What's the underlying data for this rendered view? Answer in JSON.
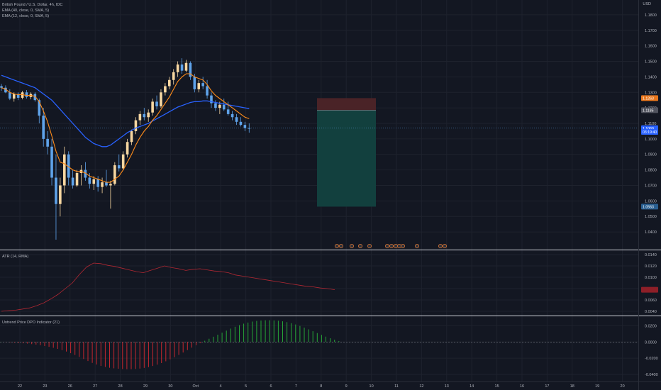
{
  "header": {
    "symbol_line": "British Pound / U.S. Dollar, 4h, IDC",
    "ema_long": "EMA (40, close, 0, SMA, 5)",
    "ema_short": "EMA (12, close, 0, SMA, 5)",
    "currency": "USD"
  },
  "atr_panel": {
    "label": "ATR (14, RMA)"
  },
  "dpo_panel": {
    "label": "Untrend Price DPO Indicator (21)"
  },
  "colors": {
    "background": "#131722",
    "grid": "#1e222d",
    "bull_candle": "#f7d7a1",
    "bear_candle": "#5fa3ea",
    "ema_long": "#2962ff",
    "ema_short": "#ff8c1a",
    "atr_line": "#b22833",
    "dpo_positive": "#26a637",
    "dpo_negative": "#c4272f",
    "stop_zone": "#4a2327",
    "target_zone": "#12403e",
    "axis_text": "#b2b5be"
  },
  "chart_data": [
    {
      "type": "candlestick",
      "name": "price",
      "ylim": [
        1.035,
        1.185
      ],
      "price_ticks": [
        "1.1800",
        "1.1700",
        "1.1600",
        "1.1500",
        "1.1400",
        "1.1300",
        "1.1200",
        "1.1100",
        "1.1000",
        "1.0900",
        "1.0800",
        "1.0700",
        "1.0600",
        "1.0500",
        "1.0400"
      ],
      "price_tags": [
        {
          "label": "1.1263",
          "value": 1.1263,
          "color": "#e8771e"
        },
        {
          "label": "1.1185",
          "value": 1.1185,
          "color": "#50535e"
        },
        {
          "label": "1.1069",
          "value": 1.1069,
          "color": "#2962ff"
        },
        {
          "label": "03:19:40",
          "value": 1.1045,
          "color": "#2962ff"
        },
        {
          "label": "1.0563",
          "value": 1.0563,
          "color": "#2a5f91"
        }
      ],
      "x_axis_labels": [
        "22",
        "23",
        "26",
        "27",
        "28",
        "29",
        "30",
        "Oct",
        "4",
        "5",
        "6",
        "7",
        "8",
        "9",
        "10",
        "11",
        "12",
        "13",
        "14",
        "15",
        "16",
        "17",
        "18",
        "19",
        "20",
        "21",
        "22",
        "23",
        "24",
        "25",
        "26"
      ],
      "position_tool": {
        "entry": 1.1185,
        "stop": 1.1263,
        "target": 1.0563
      },
      "candles": [
        [
          1.134,
          1.1355,
          1.131,
          1.133
        ],
        [
          1.133,
          1.1345,
          1.1295,
          1.13
        ],
        [
          1.13,
          1.132,
          1.125,
          1.126
        ],
        [
          1.126,
          1.13,
          1.124,
          1.129
        ],
        [
          1.129,
          1.13,
          1.125,
          1.1265
        ],
        [
          1.1265,
          1.131,
          1.1255,
          1.13
        ],
        [
          1.13,
          1.1315,
          1.126,
          1.127
        ],
        [
          1.127,
          1.13,
          1.1255,
          1.129
        ],
        [
          1.129,
          1.13,
          1.124,
          1.125
        ],
        [
          1.125,
          1.126,
          1.11,
          1.115
        ],
        [
          1.115,
          1.12,
          1.095,
          1.1
        ],
        [
          1.1,
          1.105,
          1.09,
          1.095
        ],
        [
          1.095,
          1.1,
          1.07,
          1.075
        ],
        [
          1.075,
          1.09,
          1.035,
          1.058
        ],
        [
          1.058,
          1.075,
          1.05,
          1.07
        ],
        [
          1.07,
          1.095,
          1.065,
          1.09
        ],
        [
          1.09,
          1.092,
          1.07,
          1.075
        ],
        [
          1.075,
          1.08,
          1.068,
          1.07
        ],
        [
          1.07,
          1.08,
          1.069,
          1.078
        ],
        [
          1.078,
          1.083,
          1.07,
          1.08
        ],
        [
          1.08,
          1.085,
          1.073,
          1.075
        ],
        [
          1.075,
          1.078,
          1.068,
          1.071
        ],
        [
          1.071,
          1.076,
          1.067,
          1.074
        ],
        [
          1.074,
          1.076,
          1.066,
          1.069
        ],
        [
          1.069,
          1.075,
          1.065,
          1.072
        ],
        [
          1.072,
          1.08,
          1.069,
          1.07
        ],
        [
          1.07,
          1.073,
          1.055,
          1.071
        ],
        [
          1.071,
          1.085,
          1.07,
          1.083
        ],
        [
          1.083,
          1.09,
          1.079,
          1.081
        ],
        [
          1.081,
          1.092,
          1.08,
          1.09
        ],
        [
          1.09,
          1.1,
          1.088,
          1.098
        ],
        [
          1.098,
          1.106,
          1.096,
          1.105
        ],
        [
          1.105,
          1.114,
          1.103,
          1.112
        ],
        [
          1.112,
          1.118,
          1.109,
          1.116
        ],
        [
          1.116,
          1.12,
          1.112,
          1.114
        ],
        [
          1.114,
          1.119,
          1.111,
          1.117
        ],
        [
          1.117,
          1.126,
          1.115,
          1.124
        ],
        [
          1.124,
          1.128,
          1.119,
          1.121
        ],
        [
          1.121,
          1.132,
          1.12,
          1.13
        ],
        [
          1.13,
          1.136,
          1.128,
          1.134
        ],
        [
          1.134,
          1.14,
          1.132,
          1.138
        ],
        [
          1.138,
          1.145,
          1.135,
          1.143
        ],
        [
          1.143,
          1.15,
          1.14,
          1.148
        ],
        [
          1.148,
          1.152,
          1.142,
          1.144
        ],
        [
          1.144,
          1.151,
          1.143,
          1.149
        ],
        [
          1.149,
          1.15,
          1.138,
          1.14
        ],
        [
          1.14,
          1.142,
          1.13,
          1.132
        ],
        [
          1.132,
          1.138,
          1.13,
          1.136
        ],
        [
          1.136,
          1.14,
          1.132,
          1.134
        ],
        [
          1.134,
          1.138,
          1.126,
          1.128
        ],
        [
          1.128,
          1.13,
          1.12,
          1.123
        ],
        [
          1.123,
          1.125,
          1.118,
          1.12
        ],
        [
          1.12,
          1.124,
          1.116,
          1.122
        ],
        [
          1.122,
          1.126,
          1.118,
          1.119
        ],
        [
          1.119,
          1.124,
          1.115,
          1.116
        ],
        [
          1.116,
          1.118,
          1.112,
          1.114
        ],
        [
          1.114,
          1.116,
          1.109,
          1.111
        ],
        [
          1.111,
          1.114,
          1.108,
          1.109
        ],
        [
          1.109,
          1.111,
          1.105,
          1.107
        ],
        [
          1.107,
          1.11,
          1.104,
          1.1069
        ]
      ],
      "ema_long_values": [
        1.141,
        1.14,
        1.139,
        1.138,
        1.137,
        1.136,
        1.135,
        1.134,
        1.133,
        1.131,
        1.129,
        1.127,
        1.125,
        1.122,
        1.119,
        1.116,
        1.113,
        1.11,
        1.107,
        1.104,
        1.101,
        1.099,
        1.097,
        1.096,
        1.095,
        1.095,
        1.096,
        1.098,
        1.1,
        1.102,
        1.104,
        1.1055,
        1.107,
        1.108,
        1.109,
        1.11,
        1.1115,
        1.113,
        1.1145,
        1.116,
        1.1175,
        1.119,
        1.1205,
        1.1215,
        1.1225,
        1.1235,
        1.124,
        1.124,
        1.1245,
        1.1245,
        1.124,
        1.1235,
        1.123,
        1.1225,
        1.122,
        1.1215,
        1.121,
        1.1205,
        1.12,
        1.1195
      ],
      "ema_short_values": [
        1.133,
        1.132,
        1.13,
        1.129,
        1.1285,
        1.1285,
        1.128,
        1.128,
        1.1275,
        1.124,
        1.118,
        1.111,
        1.102,
        1.092,
        1.085,
        1.084,
        1.082,
        1.08,
        1.079,
        1.079,
        1.078,
        1.076,
        1.075,
        1.074,
        1.073,
        1.072,
        1.072,
        1.074,
        1.076,
        1.08,
        1.085,
        1.09,
        1.096,
        1.101,
        1.105,
        1.108,
        1.112,
        1.115,
        1.119,
        1.123,
        1.127,
        1.132,
        1.137,
        1.14,
        1.142,
        1.142,
        1.14,
        1.139,
        1.138,
        1.135,
        1.131,
        1.128,
        1.126,
        1.124,
        1.122,
        1.12,
        1.118,
        1.116,
        1.114,
        1.113
      ]
    },
    {
      "type": "line",
      "name": "ATR (14, RMA)",
      "ylim": [
        0.0035,
        0.0145
      ],
      "ticks": [
        "0.0140",
        "0.0120",
        "0.0100",
        "0.0080",
        "0.0060",
        "0.0040"
      ],
      "values": [
        0.004,
        0.0041,
        0.0042,
        0.0044,
        0.0046,
        0.005,
        0.0055,
        0.0062,
        0.007,
        0.008,
        0.009,
        0.0105,
        0.0118,
        0.0125,
        0.0124,
        0.0121,
        0.0119,
        0.0116,
        0.0113,
        0.011,
        0.0108,
        0.0112,
        0.0116,
        0.012,
        0.0117,
        0.0115,
        0.0112,
        0.0114,
        0.0115,
        0.0113,
        0.0111,
        0.011,
        0.0108,
        0.0104,
        0.0102,
        0.01,
        0.0098,
        0.0096,
        0.0094,
        0.0092,
        0.009,
        0.0088,
        0.0086,
        0.0084,
        0.0083,
        0.0081,
        0.008,
        0.0078
      ]
    },
    {
      "type": "histogram",
      "name": "Untrend Price DPO Indicator (21)",
      "ylim": [
        -0.047,
        0.03
      ],
      "ticks": [
        "0.0200",
        "0.0000",
        "-0.0200",
        "-0.0400"
      ],
      "values": [
        0.0002,
        -0.0002,
        -0.0005,
        -0.0008,
        -0.0012,
        -0.0016,
        -0.002,
        -0.0026,
        -0.0032,
        -0.004,
        -0.005,
        -0.006,
        -0.0072,
        -0.0085,
        -0.01,
        -0.0118,
        -0.0138,
        -0.016,
        -0.0185,
        -0.021,
        -0.0235,
        -0.0258,
        -0.0278,
        -0.0295,
        -0.0308,
        -0.0318,
        -0.0325,
        -0.033,
        -0.0334,
        -0.0336,
        -0.0336,
        -0.0333,
        -0.0328,
        -0.032,
        -0.031,
        -0.0296,
        -0.028,
        -0.026,
        -0.0238,
        -0.0214,
        -0.0188,
        -0.016,
        -0.013,
        -0.01,
        -0.007,
        -0.004,
        -0.0012,
        0.0015,
        0.004,
        0.0065,
        0.009,
        0.0115,
        0.014,
        0.0165,
        0.0188,
        0.0208,
        0.0226,
        0.024,
        0.0252,
        0.026,
        0.0265,
        0.0268,
        0.0268,
        0.0266,
        0.0262,
        0.0255,
        0.0245,
        0.0232,
        0.0216,
        0.0198,
        0.0178,
        0.0156,
        0.0133,
        0.011,
        0.0088,
        0.0066,
        0.0046,
        0.0028,
        0.0012
      ]
    }
  ]
}
